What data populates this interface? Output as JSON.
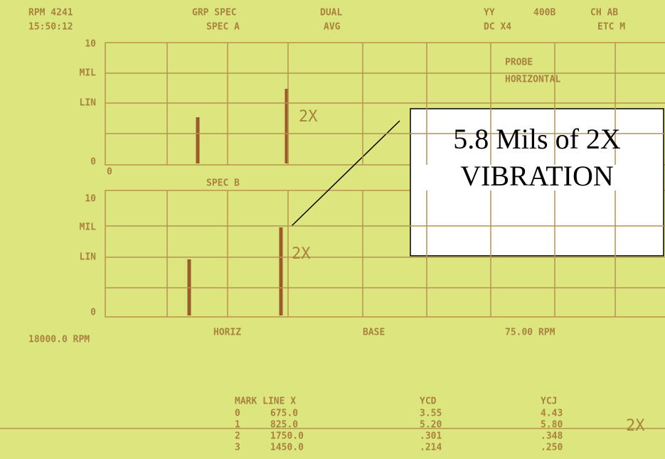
{
  "header": {
    "items": [
      "RPM 4241",
      "15:50:12",
      "GRP SPEC",
      "SPEC A",
      "DUAL",
      "AVG",
      "YY",
      "DC X4",
      "400B",
      "CH AB",
      "ETC M"
    ]
  },
  "top_panel": {
    "y_labels": [
      "10",
      "MIL",
      "LIN",
      "0"
    ],
    "x_label": "0",
    "side_labels": [
      "PROBE",
      "HORIZONTAL"
    ],
    "peak_note": "2X"
  },
  "bottom_panel": {
    "title": "SPEC B",
    "y_labels": [
      "10",
      "MIL",
      "LIN",
      "0"
    ],
    "peak_note": "2X",
    "footer": [
      "18000.0 RPM",
      "HORIZ",
      "BASE",
      "75.00 RPM"
    ]
  },
  "table": {
    "header": [
      "MARK LINE X",
      "YCD",
      "YCJ"
    ],
    "rows": [
      [
        "0",
        "675.0",
        "3.55",
        "4.43"
      ],
      [
        "1",
        "825.0",
        "5.20",
        "5.80"
      ],
      [
        "2",
        "1750.0",
        ".301",
        ".348"
      ],
      [
        "3",
        "1450.0",
        ".214",
        ".250"
      ]
    ],
    "row_note": "2X"
  },
  "callout": {
    "lines": [
      "5.8 Mils of 2X",
      "VIBRATION"
    ]
  }
}
